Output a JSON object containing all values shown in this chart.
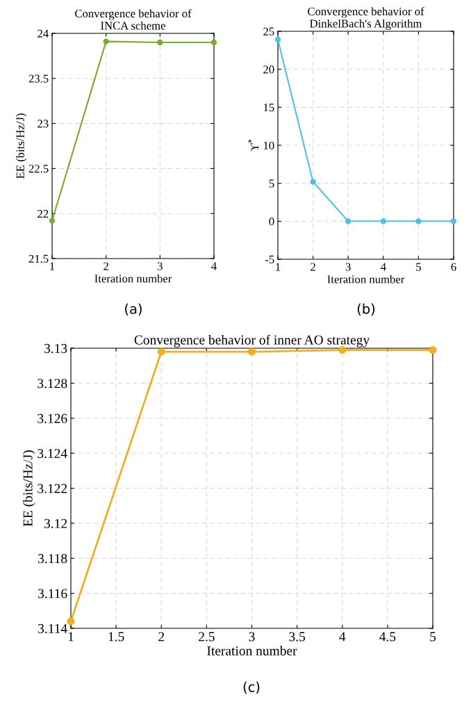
{
  "chart_data": [
    {
      "type": "line",
      "title": "Convergence behavior of\nINCA scheme",
      "xlabel": "Iteration number",
      "ylabel": "EE (bits/Hz/J)",
      "x": [
        1,
        2,
        3,
        4
      ],
      "series": [
        {
          "color": "#77ac30",
          "values": [
            21.92,
            23.91,
            23.9,
            23.9
          ]
        }
      ],
      "xlim": [
        1,
        4
      ],
      "xticks": [
        1,
        2,
        3,
        4
      ],
      "ylim": [
        21.5,
        24
      ],
      "yticks": [
        21.5,
        22,
        22.5,
        23,
        23.5,
        24
      ],
      "grid": true,
      "marker": "circle",
      "line_style": "solid",
      "annotations": [
        "(a)"
      ]
    },
    {
      "type": "line",
      "title": "Convergence behavior of\nDinkelBach's Algorithm",
      "xlabel": "Iteration number",
      "ylabel": "ϒ$^{*}$",
      "x": [
        1,
        2,
        3,
        4,
        5,
        6
      ],
      "series": [
        {
          "color": "#4dbeee",
          "values": [
            23.9,
            5.2,
            0,
            0,
            0,
            0
          ]
        }
      ],
      "xlim": [
        1,
        6
      ],
      "xticks": [
        1,
        2,
        3,
        4,
        5,
        6
      ],
      "ylim": [
        -5,
        25
      ],
      "yticks": [
        {
          "value": -5,
          "label": "-5"
        },
        0,
        5,
        10,
        15,
        20,
        25
      ],
      "grid": true,
      "marker": "circle",
      "line_style": "solid",
      "annotations": [
        "(b)"
      ]
    },
    {
      "type": "line",
      "title": "Convergence behavior of inner AO strategy",
      "xlabel": "Iteration number",
      "ylabel": "EE (bits/Hz/J)",
      "x": [
        1,
        2,
        3,
        4,
        5
      ],
      "series": [
        {
          "color": "#edb120",
          "values": [
            3.1144,
            3.1298,
            3.1298,
            3.1299,
            3.1299
          ]
        }
      ],
      "xlim": [
        1,
        5
      ],
      "xticks": [
        1,
        1.5,
        2,
        2.5,
        3,
        3.5,
        4,
        4.5,
        5
      ],
      "ylim": [
        3.114,
        3.13
      ],
      "yticks": [
        3.114,
        3.116,
        3.118,
        3.12,
        3.122,
        3.124,
        3.126,
        3.128,
        3.13
      ],
      "grid": true,
      "marker": "circle",
      "line_style": "solid",
      "annotations": [
        "(c)"
      ]
    }
  ]
}
